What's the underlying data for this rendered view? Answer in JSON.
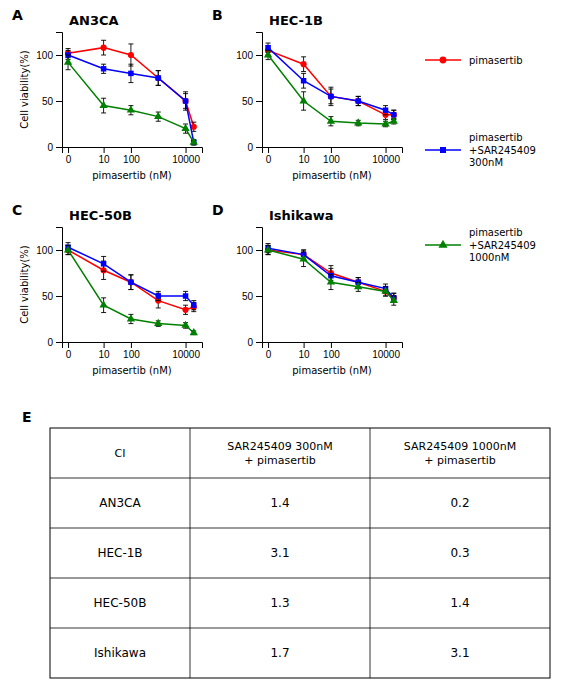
{
  "chart_data": [
    {
      "type": "line",
      "title": "AN3CA",
      "annotations": [
        "A"
      ],
      "xlabel": "pimasertib (nM)",
      "ylabel": "Cell viability(%)",
      "log": "x",
      "x": [
        0.5,
        10,
        100,
        1000,
        10000,
        20000
      ],
      "xlim": [
        0.3,
        40000
      ],
      "xticks": [
        {
          "value": 0.5,
          "label": "0"
        },
        10,
        100,
        10000
      ],
      "ylim": [
        0,
        125
      ],
      "yticks": [
        0,
        50,
        100
      ],
      "legend": "right",
      "series": [
        {
          "name": "pimasertib",
          "color": "#ff0000",
          "marker": "circle",
          "values": [
            102,
            108,
            100,
            75,
            50,
            22
          ],
          "errors": [
            5,
            8,
            12,
            8,
            10,
            5
          ]
        },
        {
          "name": "pimasertib\n+SAR245409\n300nM",
          "color": "#0000ff",
          "marker": "square",
          "values": [
            100,
            85,
            80,
            75,
            50,
            5
          ],
          "errors": [
            5,
            5,
            10,
            8,
            8,
            3
          ]
        },
        {
          "name": "pimasertib\n+SAR245409\n1000nM",
          "color": "#008000",
          "marker": "triangle",
          "values": [
            92,
            45,
            40,
            33,
            20,
            5
          ],
          "errors": [
            8,
            8,
            5,
            5,
            5,
            2
          ]
        }
      ]
    },
    {
      "type": "line",
      "title": "HEC-1B",
      "annotations": [
        "B"
      ],
      "xlabel": "pimasertib (nM)",
      "log": "x",
      "x": [
        0.5,
        10,
        100,
        1000,
        10000,
        20000
      ],
      "xlim": [
        0.3,
        40000
      ],
      "xticks": [
        {
          "value": 0.5,
          "label": "0"
        },
        10,
        100,
        10000
      ],
      "ylim": [
        0,
        125
      ],
      "yticks": [
        0,
        50,
        100
      ],
      "series": [
        {
          "color": "#ff0000",
          "marker": "circle",
          "values": [
            105,
            90,
            55,
            50,
            35,
            35
          ],
          "errors": [
            5,
            8,
            8,
            5,
            5,
            5
          ]
        },
        {
          "color": "#0000ff",
          "marker": "square",
          "values": [
            108,
            72,
            55,
            50,
            40,
            35
          ],
          "errors": [
            5,
            8,
            10,
            5,
            5,
            5
          ]
        },
        {
          "color": "#008000",
          "marker": "triangle",
          "values": [
            100,
            50,
            28,
            26,
            25,
            28
          ],
          "errors": [
            5,
            10,
            5,
            3,
            3,
            3
          ]
        }
      ]
    },
    {
      "type": "line",
      "title": "HEC-50B",
      "annotations": [
        "C"
      ],
      "xlabel": "pimasertib (nM)",
      "ylabel": "Cell viability(%)",
      "log": "x",
      "x": [
        0.5,
        10,
        100,
        1000,
        10000,
        20000
      ],
      "xlim": [
        0.3,
        40000
      ],
      "xticks": [
        {
          "value": 0.5,
          "label": "0"
        },
        10,
        100,
        10000
      ],
      "ylim": [
        0,
        125
      ],
      "yticks": [
        0,
        50,
        100
      ],
      "series": [
        {
          "color": "#ff0000",
          "marker": "circle",
          "values": [
            100,
            78,
            65,
            45,
            35,
            38
          ],
          "errors": [
            5,
            10,
            8,
            8,
            5,
            5
          ]
        },
        {
          "color": "#0000ff",
          "marker": "square",
          "values": [
            103,
            85,
            65,
            50,
            50,
            40
          ],
          "errors": [
            5,
            8,
            8,
            5,
            5,
            5
          ]
        },
        {
          "color": "#008000",
          "marker": "triangle",
          "values": [
            100,
            40,
            25,
            20,
            18,
            10
          ],
          "errors": [
            5,
            8,
            5,
            3,
            3,
            2
          ]
        }
      ]
    },
    {
      "type": "line",
      "title": "Ishikawa",
      "annotations": [
        "D"
      ],
      "xlabel": "pimasertib (nM)",
      "log": "x",
      "x": [
        0.5,
        10,
        100,
        1000,
        10000,
        20000
      ],
      "xlim": [
        0.3,
        40000
      ],
      "xticks": [
        {
          "value": 0.5,
          "label": "0"
        },
        10,
        100,
        10000
      ],
      "ylim": [
        0,
        125
      ],
      "yticks": [
        0,
        50,
        100
      ],
      "series": [
        {
          "color": "#ff0000",
          "marker": "circle",
          "values": [
            100,
            95,
            75,
            65,
            55,
            48
          ],
          "errors": [
            5,
            5,
            8,
            5,
            5,
            5
          ]
        },
        {
          "color": "#0000ff",
          "marker": "square",
          "values": [
            102,
            95,
            72,
            65,
            58,
            48
          ],
          "errors": [
            5,
            5,
            8,
            5,
            5,
            5
          ]
        },
        {
          "color": "#008000",
          "marker": "triangle",
          "values": [
            100,
            90,
            65,
            60,
            55,
            45
          ],
          "errors": [
            5,
            8,
            8,
            5,
            5,
            5
          ]
        }
      ]
    },
    {
      "type": "table",
      "annotations": [
        "E"
      ],
      "columns": [
        "CI",
        "SAR245409 300nM\n+ pimasertib",
        "SAR245409 1000nM\n+ pimasertib"
      ],
      "rows": [
        [
          "AN3CA",
          "1.4",
          "0.2"
        ],
        [
          "HEC-1B",
          "3.1",
          "0.3"
        ],
        [
          "HEC-50B",
          "1.3",
          "1.4"
        ],
        [
          "Ishikawa",
          "1.7",
          "3.1"
        ]
      ]
    }
  ]
}
